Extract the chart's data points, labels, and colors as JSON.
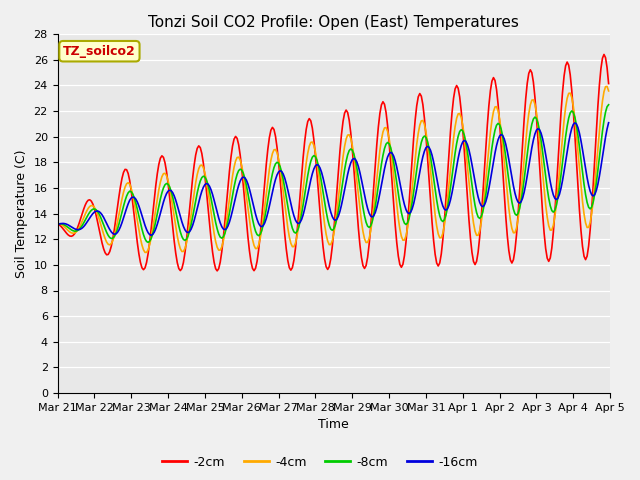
{
  "title": "Tonzi Soil CO2 Profile: Open (East) Temperatures",
  "xlabel": "Time",
  "ylabel": "Soil Temperature (C)",
  "ylim": [
    0,
    28
  ],
  "yticks": [
    0,
    2,
    4,
    6,
    8,
    10,
    12,
    14,
    16,
    18,
    20,
    22,
    24,
    26,
    28
  ],
  "legend_label": "TZ_soilco2",
  "legend_labels": [
    "-2cm",
    "-4cm",
    "-8cm",
    "-16cm"
  ],
  "line_colors": [
    "#ff0000",
    "#ffaa00",
    "#00cc00",
    "#0000dd"
  ],
  "background_color": "#f0f0f0",
  "plot_bg_color": "#e8e8e8",
  "title_fontsize": 11,
  "label_fontsize": 9,
  "tick_fontsize": 8,
  "n_points": 360,
  "figsize": [
    6.4,
    4.8
  ],
  "dpi": 100
}
